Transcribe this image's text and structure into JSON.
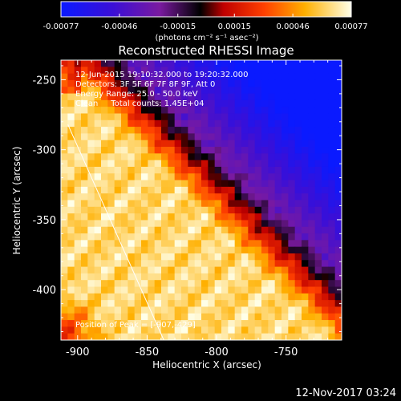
{
  "colorbar": {
    "ticks": [
      "-0.00077",
      "-0.00046",
      "-0.00015",
      "0.00015",
      "0.00046",
      "0.00077"
    ],
    "unit_label": "(photons cm⁻² s⁻¹ asec⁻²)"
  },
  "chart_data": {
    "type": "heatmap",
    "title": "Reconstructed RHESSI Image",
    "xlabel": "Heliocentric X (arcsec)",
    "ylabel": "Heliocentric Y (arcsec)",
    "xlim": [
      -912,
      -710
    ],
    "ylim": [
      -436,
      -236
    ],
    "xticks": [
      -900,
      -850,
      -800,
      -750
    ],
    "yticks": [
      -250,
      -300,
      -350,
      -400
    ],
    "xtick_labels": [
      "-900",
      "-850",
      "-800",
      "-750"
    ],
    "ytick_labels": [
      "-250",
      "-300",
      "-350",
      "-400"
    ],
    "colorbar_range": [
      -0.00077,
      0.00077
    ],
    "colormap": "blue-purple-red-yellow-white",
    "annotations": [
      "12-Jun-2015 19:10:32.000 to 19:20:32.000",
      "Detectors: 3F 5F 6F 7F 8F 9F, Att 0",
      "Energy Range: 25.0 - 50.0 keV",
      "Clean     Total counts: 1.45E+04"
    ],
    "peak_label": "Position of Peak = [-907,-429]",
    "limb_line": [
      [
        -907,
        -282
      ],
      [
        -838,
        -436
      ]
    ]
  },
  "footer": {
    "timestamp": "12-Nov-2017 03:24"
  }
}
